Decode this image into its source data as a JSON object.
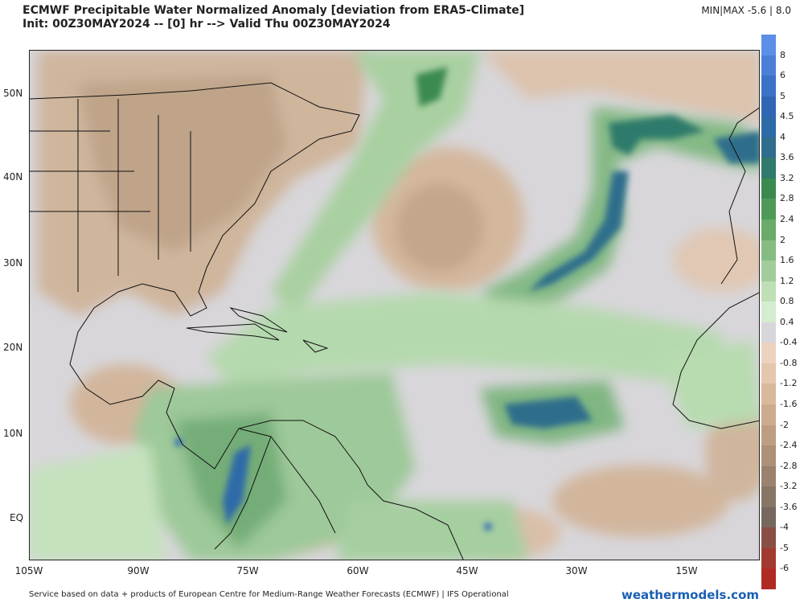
{
  "header": {
    "title": "ECMWF Precipitable Water Normalized Anomaly [deviation from ERA5-Climate]",
    "subtitle": "Init: 00Z30MAY2024 -- [0] hr --> Valid Thu 00Z30MAY2024",
    "minmax": "MIN|MAX  -5.6 | 8.0"
  },
  "map": {
    "lat_labels": [
      "50N",
      "40N",
      "30N",
      "20N",
      "10N",
      "EQ"
    ],
    "lon_labels": [
      "105W",
      "90W",
      "75W",
      "60W",
      "45W",
      "30W",
      "15W"
    ]
  },
  "colorbar": {
    "labels": [
      "8",
      "6",
      "5",
      "4.5",
      "4",
      "3.6",
      "3.2",
      "2.8",
      "2.4",
      "2",
      "1.6",
      "1.2",
      "0.8",
      "0.4",
      "-0.4",
      "-0.8",
      "-1.2",
      "-1.6",
      "-2",
      "-2.4",
      "-2.8",
      "-3.2",
      "-3.6",
      "-4",
      "-5",
      "-6"
    ],
    "colors": [
      "#5b8fe8",
      "#4a7fd8",
      "#3a72c8",
      "#2f67b5",
      "#2d6aa8",
      "#2e6e8c",
      "#2f7a6c",
      "#3a8a50",
      "#4f9a58",
      "#6aab6a",
      "#86bb82",
      "#a2cc9c",
      "#bfe0b6",
      "#d4ecd0",
      "#d8d6da",
      "#ecd3bf",
      "#e4c7ad",
      "#d8b99c",
      "#ccab8e",
      "#bd9e82",
      "#ad9078",
      "#9a826e",
      "#877566",
      "#76685e",
      "#8a4f44",
      "#a33a30",
      "#b02a24"
    ]
  },
  "footer": {
    "source": "Service based on data + products of European Centre for Medium-Range Weather Forecasts (ECMWF) | IFS Operational",
    "brand": "weathermodels.com"
  }
}
